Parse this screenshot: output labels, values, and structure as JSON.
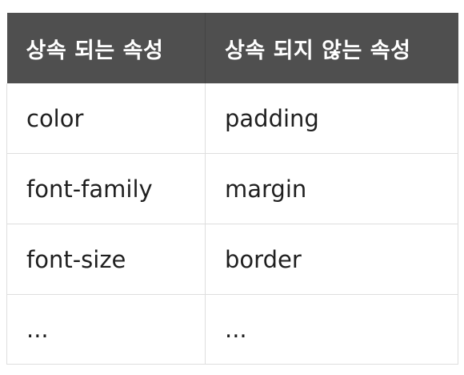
{
  "table": {
    "headers": [
      "상속 되는 속성",
      "상속 되지 않는 속성"
    ],
    "rows": [
      [
        "color",
        "padding"
      ],
      [
        "font-family",
        "margin"
      ],
      [
        "font-size",
        "border"
      ],
      [
        "...",
        "..."
      ]
    ]
  },
  "colors": {
    "header_background": "#4f4f4f",
    "header_text": "#ffffff",
    "cell_text": "#1f1f1f",
    "grid_line": "#dedede"
  }
}
